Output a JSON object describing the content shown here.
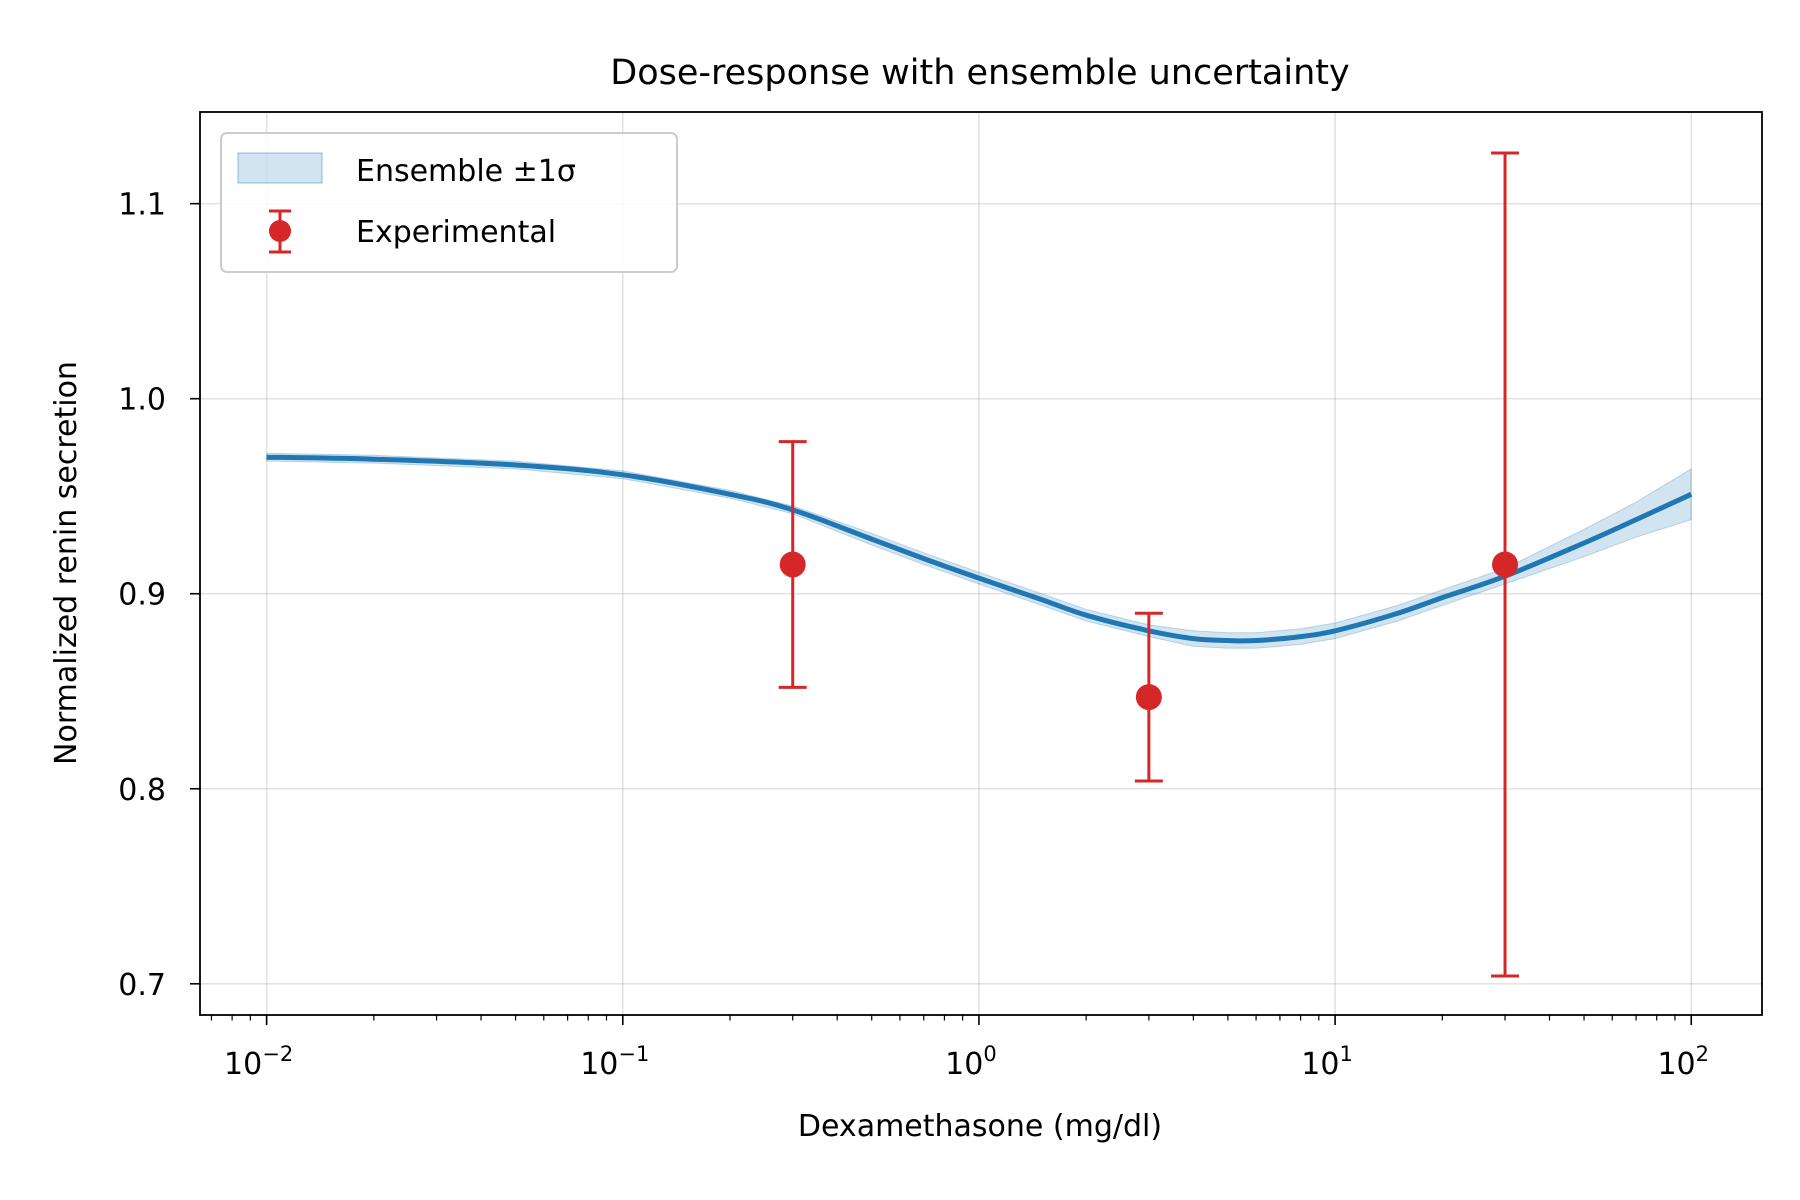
{
  "chart_data": {
    "type": "line",
    "title": "Dose-response with ensemble uncertainty",
    "xlabel": "Dexamethasone (mg/dl)",
    "ylabel": "Normalized renin secretion",
    "x_scale": "log",
    "xlim": [
      0.0065,
      158
    ],
    "ylim": [
      0.684,
      1.147
    ],
    "grid": true,
    "legend_position": "top-left",
    "x_ticks": [
      {
        "value": 0.01,
        "base": "10",
        "exp": "−2"
      },
      {
        "value": 0.1,
        "base": "10",
        "exp": "−1"
      },
      {
        "value": 1,
        "base": "10",
        "exp": "0"
      },
      {
        "value": 10,
        "base": "10",
        "exp": "1"
      },
      {
        "value": 100,
        "base": "10",
        "exp": "2"
      }
    ],
    "y_ticks": [
      {
        "value": 0.7,
        "label": "0.7"
      },
      {
        "value": 0.8,
        "label": "0.8"
      },
      {
        "value": 0.9,
        "label": "0.9"
      },
      {
        "value": 1.0,
        "label": "1.0"
      },
      {
        "value": 1.1,
        "label": "1.1"
      }
    ],
    "curve": {
      "color": "#1f77b4",
      "x": [
        0.01,
        0.02,
        0.05,
        0.1,
        0.2,
        0.3,
        0.5,
        0.7,
        1,
        1.5,
        2,
        3,
        4,
        5,
        6,
        8,
        10,
        15,
        20,
        30,
        50,
        70,
        100
      ],
      "y": [
        0.97,
        0.969,
        0.966,
        0.961,
        0.951,
        0.943,
        0.928,
        0.918,
        0.908,
        0.897,
        0.889,
        0.881,
        0.877,
        0.876,
        0.876,
        0.878,
        0.881,
        0.89,
        0.898,
        0.909,
        0.926,
        0.938,
        0.951
      ],
      "band_halfwidth": [
        0.002,
        0.002,
        0.002,
        0.002,
        0.002,
        0.002,
        0.003,
        0.003,
        0.003,
        0.003,
        0.003,
        0.003,
        0.004,
        0.004,
        0.004,
        0.004,
        0.004,
        0.004,
        0.004,
        0.004,
        0.007,
        0.009,
        0.013
      ]
    },
    "points": {
      "color": "#d62728",
      "x": [
        0.3,
        3,
        30
      ],
      "y": [
        0.915,
        0.847,
        0.915
      ],
      "err_low": [
        0.852,
        0.804,
        0.704
      ],
      "err_high": [
        0.978,
        0.89,
        1.126
      ]
    },
    "legend": [
      {
        "label": "Ensemble ±1σ",
        "kind": "band"
      },
      {
        "label": "Experimental",
        "kind": "errorbar"
      }
    ]
  }
}
